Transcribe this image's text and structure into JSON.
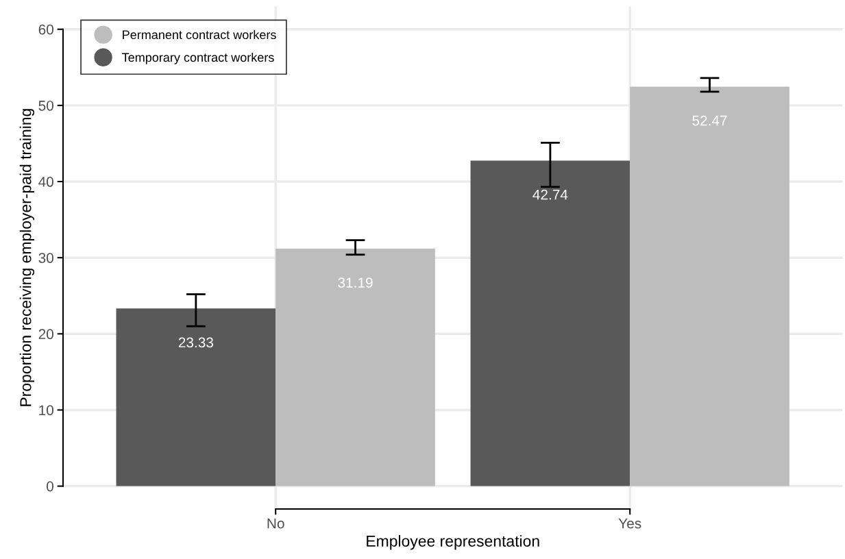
{
  "chart_data": {
    "type": "bar",
    "xlabel": "Employee representation",
    "ylabel": "Proportion receiving employer-paid training",
    "categories": [
      "No",
      "Yes"
    ],
    "series": [
      {
        "name": "Temporary contract workers",
        "color": "#595959",
        "values": [
          23.33,
          42.74
        ],
        "errors": [
          [
            21.0,
            25.2
          ],
          [
            39.3,
            45.1
          ]
        ]
      },
      {
        "name": "Permanent contract workers",
        "color": "#bdbdbd",
        "values": [
          31.19,
          52.47
        ],
        "errors": [
          [
            30.4,
            32.3
          ],
          [
            51.8,
            53.6
          ]
        ]
      }
    ],
    "ylim": [
      -3,
      63
    ],
    "yticks": [
      0,
      10,
      20,
      30,
      40,
      50,
      60
    ],
    "grid": true,
    "legend": "top left",
    "data_labels": true
  }
}
